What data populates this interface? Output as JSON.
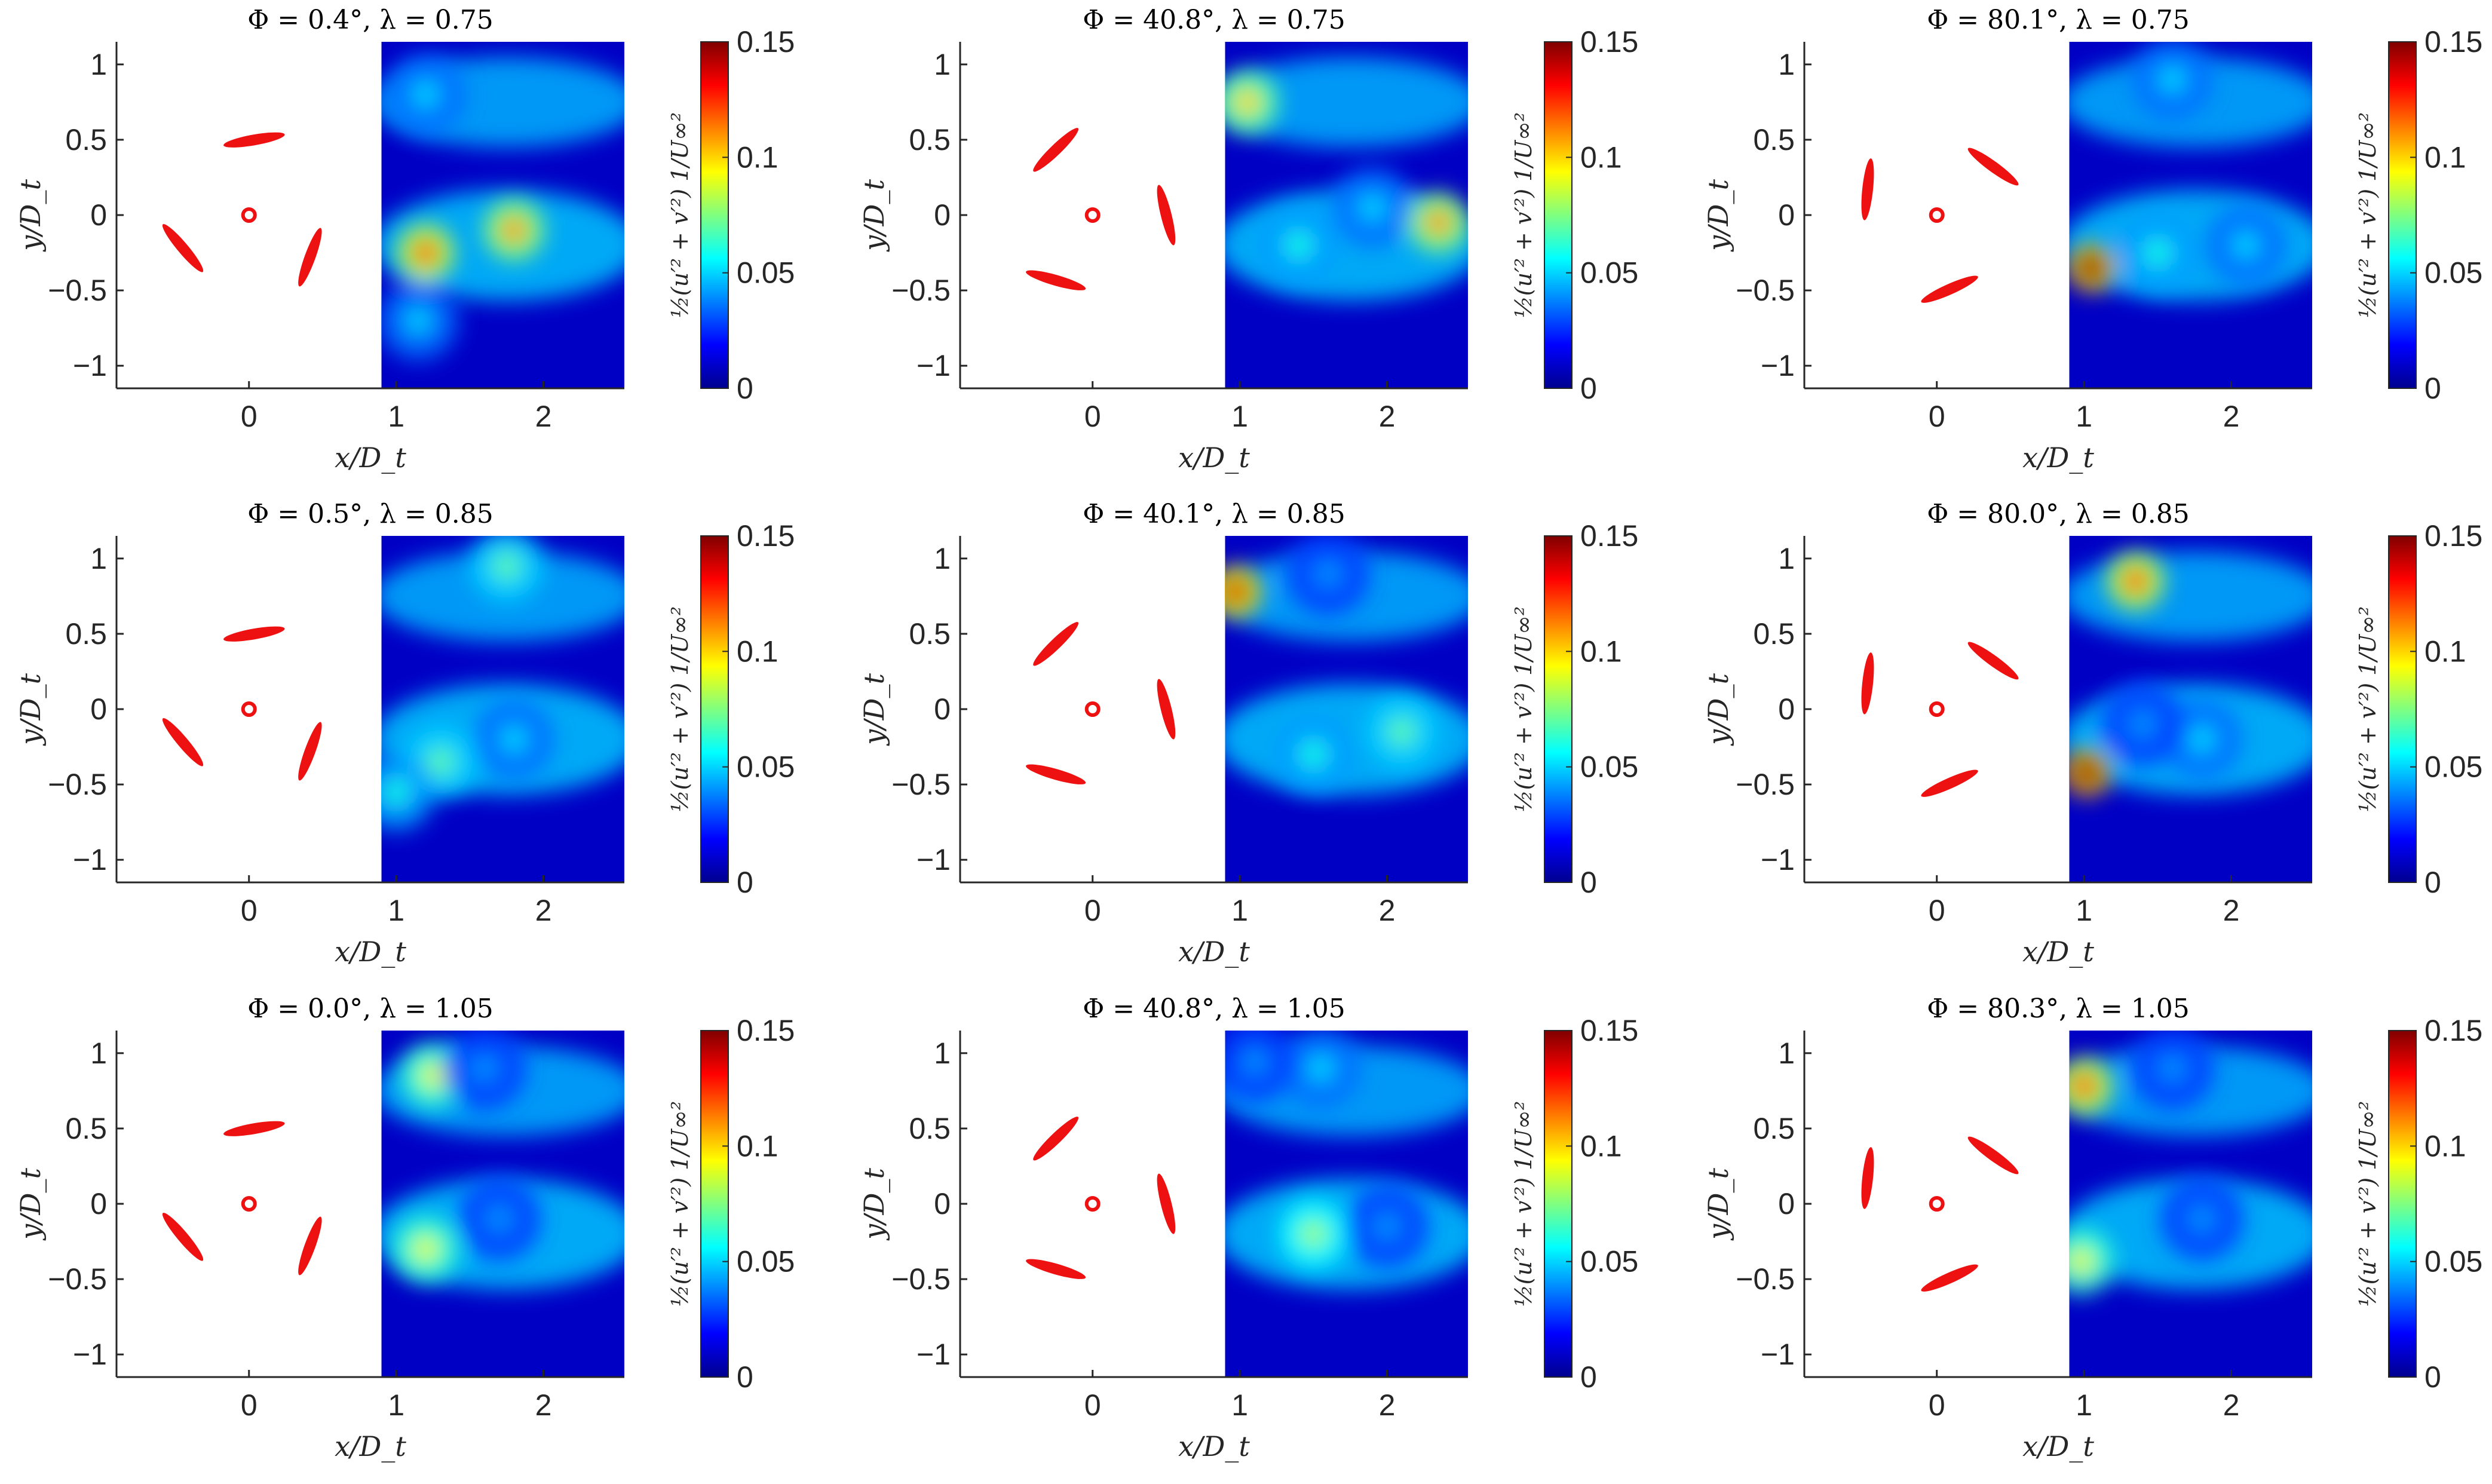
{
  "figure": {
    "cbar_label": "½(u′² + v′²) 1/U∞²",
    "colorscale": [
      "#00008f",
      "#0000ff",
      "#0080ff",
      "#00ffff",
      "#80ff80",
      "#ffff00",
      "#ff8000",
      "#ff0000",
      "#800000"
    ]
  },
  "chart_data": [
    {
      "type": "heatmap",
      "title": "Φ = 0.4°, λ = 0.75",
      "phi_deg": 0.4,
      "lambda": 0.75,
      "xlabel": "x/D_t",
      "ylabel": "y/D_t",
      "x_ticks": [
        "0",
        "1",
        "2"
      ],
      "y_ticks": [
        "1",
        "0.5",
        "0",
        "−0.5",
        "−1"
      ],
      "clim": [
        0,
        0.15
      ],
      "cbar_ticks": [
        "0.15",
        "0.1",
        "0.05",
        "0"
      ],
      "xlim": [
        -0.9,
        2.55
      ],
      "ylim": [
        -1.15,
        1.15
      ],
      "blade_azimuths_deg": [
        86,
        206,
        326
      ],
      "hotspots": [
        {
          "x": 1.8,
          "y": -0.1,
          "value": 0.11
        },
        {
          "x": 1.2,
          "y": -0.25,
          "value": 0.12
        },
        {
          "x": 1.2,
          "y": 0.8,
          "value": 0.05
        },
        {
          "x": 1.15,
          "y": -0.7,
          "value": 0.05
        }
      ]
    },
    {
      "type": "heatmap",
      "title": "Φ = 40.8°, λ = 0.75",
      "phi_deg": 40.8,
      "lambda": 0.75,
      "xlabel": "x/D_t",
      "ylabel": "y/D_t",
      "x_ticks": [
        "0",
        "1",
        "2"
      ],
      "y_ticks": [
        "1",
        "0.5",
        "0",
        "−0.5",
        "−1"
      ],
      "clim": [
        0,
        0.15
      ],
      "cbar_ticks": [
        "0.15",
        "0.1",
        "0.05",
        "0"
      ],
      "xlim": [
        -0.9,
        2.55
      ],
      "ylim": [
        -1.15,
        1.15
      ],
      "blade_azimuths_deg": [
        0,
        120,
        240
      ],
      "hotspots": [
        {
          "x": 1.05,
          "y": 0.75,
          "value": 0.1
        },
        {
          "x": 2.35,
          "y": -0.05,
          "value": 0.11
        },
        {
          "x": 1.4,
          "y": -0.2,
          "value": 0.06
        },
        {
          "x": 1.9,
          "y": 0.05,
          "value": 0.05
        }
      ]
    },
    {
      "type": "heatmap",
      "title": "Φ = 80.1°, λ = 0.75",
      "phi_deg": 80.1,
      "lambda": 0.75,
      "xlabel": "x/D_t",
      "ylabel": "y/D_t",
      "x_ticks": [
        "0",
        "1",
        "2"
      ],
      "y_ticks": [
        "1",
        "0.5",
        "0",
        "−0.5",
        "−1"
      ],
      "clim": [
        0,
        0.15
      ],
      "cbar_ticks": [
        "0.15",
        "0.1",
        "0.05",
        "0"
      ],
      "xlim": [
        -0.9,
        2.55
      ],
      "ylim": [
        -1.15,
        1.15
      ],
      "blade_azimuths_deg": [
        40,
        160,
        280
      ],
      "hotspots": [
        {
          "x": 1.05,
          "y": -0.35,
          "value": 0.15
        },
        {
          "x": 1.5,
          "y": -0.25,
          "value": 0.06
        },
        {
          "x": 1.6,
          "y": 0.9,
          "value": 0.05
        },
        {
          "x": 2.1,
          "y": -0.2,
          "value": 0.05
        }
      ]
    },
    {
      "type": "heatmap",
      "title": "Φ = 0.5°, λ = 0.85",
      "phi_deg": 0.5,
      "lambda": 0.85,
      "xlabel": "x/D_t",
      "ylabel": "y/D_t",
      "x_ticks": [
        "0",
        "1",
        "2"
      ],
      "y_ticks": [
        "1",
        "0.5",
        "0",
        "−0.5",
        "−1"
      ],
      "clim": [
        0,
        0.15
      ],
      "cbar_ticks": [
        "0.15",
        "0.1",
        "0.05",
        "0"
      ],
      "xlim": [
        -0.9,
        2.55
      ],
      "ylim": [
        -1.15,
        1.15
      ],
      "blade_azimuths_deg": [
        86,
        206,
        326
      ],
      "hotspots": [
        {
          "x": 1.75,
          "y": 0.95,
          "value": 0.07
        },
        {
          "x": 1.3,
          "y": -0.35,
          "value": 0.07
        },
        {
          "x": 1.0,
          "y": -0.55,
          "value": 0.06
        },
        {
          "x": 1.8,
          "y": -0.2,
          "value": 0.05
        }
      ]
    },
    {
      "type": "heatmap",
      "title": "Φ = 40.1°, λ = 0.85",
      "phi_deg": 40.1,
      "lambda": 0.85,
      "xlabel": "x/D_t",
      "ylabel": "y/D_t",
      "x_ticks": [
        "0",
        "1",
        "2"
      ],
      "y_ticks": [
        "1",
        "0.5",
        "0",
        "−0.5",
        "−1"
      ],
      "clim": [
        0,
        0.15
      ],
      "cbar_ticks": [
        "0.15",
        "0.1",
        "0.05",
        "0"
      ],
      "xlim": [
        -0.9,
        2.55
      ],
      "ylim": [
        -1.15,
        1.15
      ],
      "blade_azimuths_deg": [
        0,
        120,
        240
      ],
      "hotspots": [
        {
          "x": 0.97,
          "y": 0.78,
          "value": 0.14
        },
        {
          "x": 2.1,
          "y": -0.15,
          "value": 0.07
        },
        {
          "x": 1.5,
          "y": -0.3,
          "value": 0.06
        },
        {
          "x": 1.6,
          "y": 0.9,
          "value": 0.04
        }
      ]
    },
    {
      "type": "heatmap",
      "title": "Φ = 80.0°, λ = 0.85",
      "phi_deg": 80.0,
      "lambda": 0.85,
      "xlabel": "x/D_t",
      "ylabel": "y/D_t",
      "x_ticks": [
        "0",
        "1",
        "2"
      ],
      "y_ticks": [
        "1",
        "0.5",
        "0",
        "−0.5",
        "−1"
      ],
      "clim": [
        0,
        0.15
      ],
      "cbar_ticks": [
        "0.15",
        "0.1",
        "0.05",
        "0"
      ],
      "xlim": [
        -0.9,
        2.55
      ],
      "ylim": [
        -1.15,
        1.15
      ],
      "blade_azimuths_deg": [
        40,
        160,
        280
      ],
      "hotspots": [
        {
          "x": 1.35,
          "y": 0.85,
          "value": 0.12
        },
        {
          "x": 1.02,
          "y": -0.42,
          "value": 0.15
        },
        {
          "x": 1.8,
          "y": -0.2,
          "value": 0.05
        },
        {
          "x": 1.4,
          "y": -0.1,
          "value": 0.04
        }
      ]
    },
    {
      "type": "heatmap",
      "title": "Φ = 0.0°, λ = 1.05",
      "phi_deg": 0.0,
      "lambda": 1.05,
      "xlabel": "x/D_t",
      "ylabel": "y/D_t",
      "x_ticks": [
        "0",
        "1",
        "2"
      ],
      "y_ticks": [
        "1",
        "0.5",
        "0",
        "−0.5",
        "−1"
      ],
      "clim": [
        0,
        0.15
      ],
      "cbar_ticks": [
        "0.15",
        "0.1",
        "0.05",
        "0"
      ],
      "xlim": [
        -0.9,
        2.55
      ],
      "ylim": [
        -1.15,
        1.15
      ],
      "blade_azimuths_deg": [
        86,
        206,
        326
      ],
      "hotspots": [
        {
          "x": 1.25,
          "y": 0.85,
          "value": 0.09
        },
        {
          "x": 1.2,
          "y": -0.3,
          "value": 0.09
        },
        {
          "x": 1.7,
          "y": -0.1,
          "value": 0.04
        },
        {
          "x": 1.6,
          "y": 0.9,
          "value": 0.04
        }
      ]
    },
    {
      "type": "heatmap",
      "title": "Φ = 40.8°, λ = 1.05",
      "phi_deg": 40.8,
      "lambda": 1.05,
      "xlabel": "x/D_t",
      "ylabel": "y/D_t",
      "x_ticks": [
        "0",
        "1",
        "2"
      ],
      "y_ticks": [
        "1",
        "0.5",
        "0",
        "−0.5",
        "−1"
      ],
      "clim": [
        0,
        0.15
      ],
      "cbar_ticks": [
        "0.15",
        "0.1",
        "0.05",
        "0"
      ],
      "xlim": [
        -0.9,
        2.55
      ],
      "ylim": [
        -1.15,
        1.15
      ],
      "blade_azimuths_deg": [
        0,
        120,
        240
      ],
      "hotspots": [
        {
          "x": 1.5,
          "y": -0.2,
          "value": 0.08
        },
        {
          "x": 1.55,
          "y": 0.9,
          "value": 0.05
        },
        {
          "x": 2.0,
          "y": -0.15,
          "value": 0.04
        },
        {
          "x": 1.1,
          "y": 0.95,
          "value": 0.04
        }
      ]
    },
    {
      "type": "heatmap",
      "title": "Φ = 80.3°, λ = 1.05",
      "phi_deg": 80.3,
      "lambda": 1.05,
      "xlabel": "x/D_t",
      "ylabel": "y/D_t",
      "x_ticks": [
        "0",
        "1",
        "2"
      ],
      "y_ticks": [
        "1",
        "0.5",
        "0",
        "−0.5",
        "−1"
      ],
      "clim": [
        0,
        0.15
      ],
      "cbar_ticks": [
        "0.15",
        "0.1",
        "0.05",
        "0"
      ],
      "xlim": [
        -0.9,
        2.55
      ],
      "ylim": [
        -1.15,
        1.15
      ],
      "blade_azimuths_deg": [
        40,
        160,
        280
      ],
      "hotspots": [
        {
          "x": 1.0,
          "y": 0.78,
          "value": 0.12
        },
        {
          "x": 0.98,
          "y": -0.38,
          "value": 0.09
        },
        {
          "x": 1.8,
          "y": -0.1,
          "value": 0.04
        },
        {
          "x": 1.6,
          "y": 0.9,
          "value": 0.04
        }
      ]
    }
  ]
}
